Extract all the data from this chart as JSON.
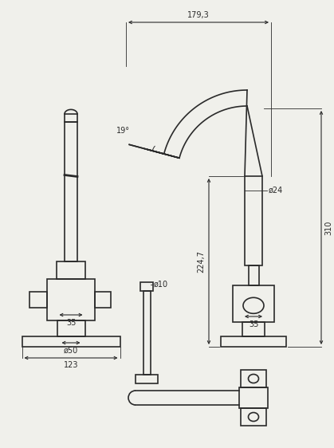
{
  "bg_color": "#f0f0eb",
  "line_color": "#2a2a2a",
  "lw": 1.2,
  "fig_w": 4.19,
  "fig_h": 5.62,
  "ann": {
    "dim_179": "179,3",
    "dim_19": "19°",
    "dim_224": "224,7",
    "dim_310": "310",
    "dim_phi24": "ø24",
    "dim_phi10": "ø10",
    "dim_35_left": "35",
    "dim_35_right": "35",
    "dim_phi50": "ø50",
    "dim_123": "123"
  }
}
